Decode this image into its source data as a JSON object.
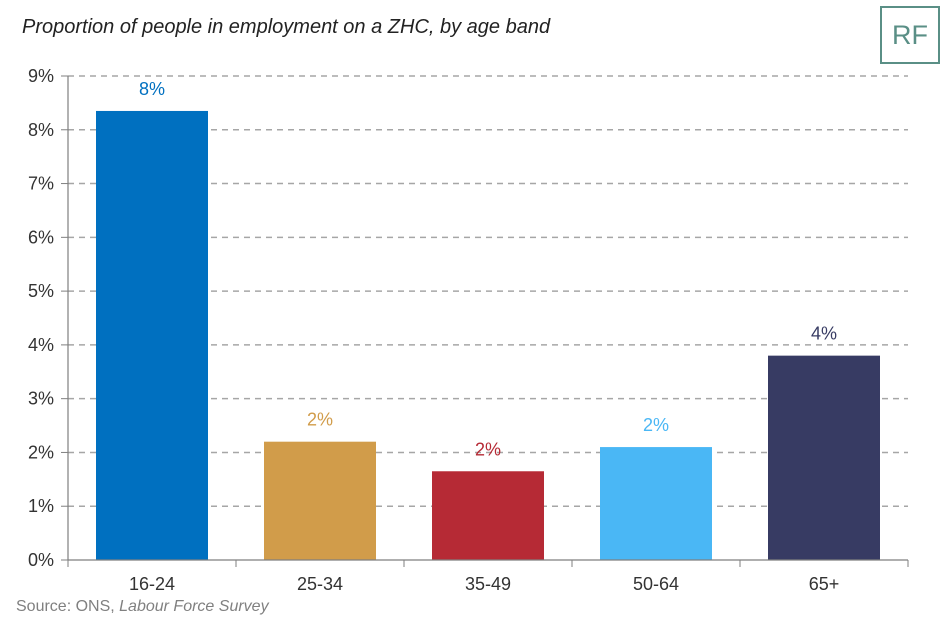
{
  "title": "Proportion of people in employment on a ZHC, by age band",
  "logo": {
    "text": "RF"
  },
  "source": {
    "prefix": "Source: ONS, ",
    "italic": "Labour Force Survey"
  },
  "colors": {
    "grid": "#a6a6a6",
    "axis": "#7f7f7f",
    "logo": "#5a8f86"
  },
  "chart_data": {
    "type": "bar",
    "title": "Proportion of people in employment on a ZHC, by age band",
    "xlabel": "",
    "ylabel": "",
    "categories": [
      "16-24",
      "25-34",
      "35-49",
      "50-64",
      "65+"
    ],
    "values": [
      8.35,
      2.2,
      1.65,
      2.1,
      3.8
    ],
    "data_labels": [
      "8%",
      "2%",
      "2%",
      "2%",
      "4%"
    ],
    "colors": [
      "#0070c0",
      "#d19c4a",
      "#b62a35",
      "#4ab7f5",
      "#373b63"
    ],
    "ylim": [
      0,
      9
    ],
    "yticks": [
      "0%",
      "1%",
      "2%",
      "3%",
      "4%",
      "5%",
      "6%",
      "7%",
      "8%",
      "9%"
    ],
    "grid": true,
    "grid_style": "dashed",
    "legend": "none"
  }
}
